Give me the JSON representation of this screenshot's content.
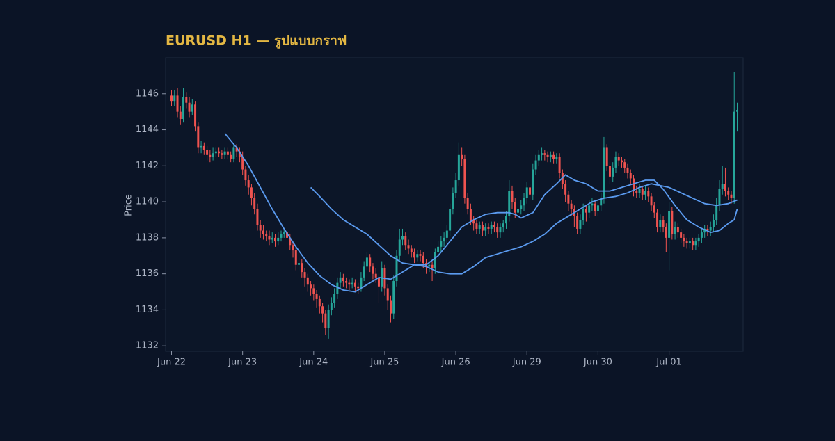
{
  "chart_data": {
    "type": "candlestick",
    "title": "EURUSD H1 — รูปแบบกราฟ",
    "y_label": "Price",
    "up_color": "#26a69a",
    "down_color": "#ef5350",
    "xlim": [
      -2,
      193
    ],
    "ylim": [
      1131.7,
      1148
    ],
    "xticks": [
      {
        "value": 0,
        "label": "Jun 22"
      },
      {
        "value": 24,
        "label": "Jun 23"
      },
      {
        "value": 48,
        "label": "Jun 24"
      },
      {
        "value": 72,
        "label": "Jun 25"
      },
      {
        "value": 96,
        "label": "Jun 26"
      },
      {
        "value": 120,
        "label": "Jun 29"
      },
      {
        "value": 144,
        "label": "Jun 30"
      },
      {
        "value": 168,
        "label": "Jul 01"
      }
    ],
    "yticks": [
      1132,
      1134,
      1136,
      1138,
      1140,
      1142,
      1144,
      1146
    ],
    "open": [
      1145.9,
      1145.6,
      1145.9,
      1145.0,
      1144.6,
      1145.8,
      1145.5,
      1145.0,
      1145.4,
      1144.2,
      1143.0,
      1143.1,
      1142.9,
      1142.6,
      1142.5,
      1142.7,
      1142.8,
      1142.7,
      1142.6,
      1142.8,
      1142.6,
      1142.4,
      1143.0,
      1142.8,
      1142.5,
      1141.8,
      1141.2,
      1140.8,
      1140.2,
      1139.6,
      1138.7,
      1138.4,
      1138.2,
      1138.1,
      1137.9,
      1138.0,
      1137.8,
      1138.0,
      1138.2,
      1138.3,
      1138.0,
      1137.6,
      1137.3,
      1136.5,
      1136.6,
      1136.1,
      1135.8,
      1135.4,
      1135.2,
      1134.9,
      1134.6,
      1134.2,
      1133.8,
      1133.0,
      1134.0,
      1134.4,
      1134.9,
      1135.5,
      1135.8,
      1135.6,
      1135.5,
      1135.4,
      1135.5,
      1135.3,
      1135.2,
      1135.8,
      1136.4,
      1136.9,
      1136.4,
      1136.0,
      1135.8,
      1135.3,
      1136.3,
      1135.2,
      1134.5,
      1133.8,
      1135.6,
      1137.0,
      1137.9,
      1138.1,
      1137.6,
      1137.4,
      1137.2,
      1136.9,
      1137.1,
      1137.0,
      1136.6,
      1136.4,
      1136.5,
      1136.3,
      1137.2,
      1137.5,
      1137.8,
      1138.0,
      1138.4,
      1139.6,
      1140.5,
      1141.2,
      1142.6,
      1142.4,
      1140.2,
      1139.6,
      1139.0,
      1138.8,
      1138.5,
      1138.7,
      1138.4,
      1138.6,
      1138.5,
      1138.7,
      1138.6,
      1138.3,
      1138.6,
      1138.8,
      1139.2,
      1140.6,
      1140.0,
      1139.4,
      1139.6,
      1139.8,
      1140.2,
      1140.8,
      1140.4,
      1141.8,
      1142.3,
      1142.6,
      1142.7,
      1142.6,
      1142.5,
      1142.6,
      1142.4,
      1142.5,
      1141.6,
      1141.0,
      1140.4,
      1139.9,
      1139.6,
      1139.2,
      1138.5,
      1139.0,
      1139.6,
      1139.4,
      1139.8,
      1139.9,
      1139.5,
      1139.8,
      1140.2,
      1143.0,
      1142.0,
      1141.4,
      1141.9,
      1142.5,
      1142.3,
      1142.2,
      1141.9,
      1141.6,
      1141.3,
      1140.6,
      1140.5,
      1140.7,
      1140.4,
      1140.6,
      1140.3,
      1139.8,
      1139.4,
      1138.6,
      1139.0,
      1138.6,
      1138.0,
      1139.5,
      1138.2,
      1138.6,
      1138.3,
      1138.0,
      1137.8,
      1137.7,
      1137.8,
      1137.6,
      1137.8,
      1138.0,
      1138.3,
      1138.5,
      1138.4,
      1138.6,
      1139.0,
      1139.8,
      1140.7,
      1141.0,
      1140.6,
      1140.4,
      1140.2,
      1145.0
    ],
    "high": [
      1146.2,
      1146.2,
      1146.3,
      1145.3,
      1146.3,
      1146.1,
      1145.8,
      1145.7,
      1145.6,
      1144.4,
      1143.4,
      1143.3,
      1143.1,
      1142.9,
      1143.0,
      1143.0,
      1143.0,
      1142.9,
      1143.0,
      1143.0,
      1142.8,
      1143.2,
      1143.2,
      1143.0,
      1142.8,
      1142.0,
      1141.5,
      1141.0,
      1140.5,
      1139.9,
      1139.0,
      1138.7,
      1138.4,
      1138.4,
      1138.3,
      1138.2,
      1138.3,
      1138.4,
      1138.5,
      1138.5,
      1138.2,
      1137.8,
      1137.5,
      1136.9,
      1136.8,
      1136.3,
      1136.0,
      1135.6,
      1135.4,
      1135.1,
      1134.8,
      1134.4,
      1134.0,
      1134.3,
      1134.7,
      1135.2,
      1135.8,
      1136.1,
      1136.0,
      1135.8,
      1135.7,
      1135.8,
      1135.7,
      1135.5,
      1136.1,
      1136.7,
      1137.2,
      1137.1,
      1136.6,
      1136.3,
      1136.0,
      1136.7,
      1136.5,
      1135.4,
      1134.8,
      1135.9,
      1137.3,
      1138.5,
      1138.5,
      1138.3,
      1137.9,
      1137.6,
      1137.4,
      1137.3,
      1137.3,
      1137.2,
      1136.8,
      1136.7,
      1136.7,
      1137.4,
      1137.8,
      1138.1,
      1138.3,
      1138.7,
      1139.9,
      1140.8,
      1141.6,
      1143.3,
      1143.0,
      1142.6,
      1140.5,
      1139.9,
      1139.2,
      1139.0,
      1138.9,
      1138.9,
      1138.8,
      1138.8,
      1138.9,
      1138.9,
      1138.8,
      1138.8,
      1139.0,
      1139.5,
      1141.2,
      1140.9,
      1140.2,
      1139.9,
      1140.1,
      1140.5,
      1141.1,
      1141.0,
      1142.1,
      1142.6,
      1142.9,
      1143.0,
      1142.9,
      1142.8,
      1142.8,
      1142.8,
      1142.7,
      1142.7,
      1141.8,
      1141.2,
      1140.6,
      1140.1,
      1139.8,
      1139.4,
      1139.3,
      1139.9,
      1139.8,
      1140.1,
      1140.2,
      1140.1,
      1140.1,
      1140.5,
      1143.6,
      1143.2,
      1142.2,
      1142.2,
      1142.8,
      1142.7,
      1142.5,
      1142.4,
      1142.1,
      1141.8,
      1141.5,
      1140.9,
      1141.0,
      1140.9,
      1140.9,
      1140.8,
      1140.5,
      1140.0,
      1139.6,
      1139.3,
      1139.2,
      1138.8,
      1140.0,
      1139.7,
      1138.9,
      1138.8,
      1138.5,
      1138.2,
      1138.0,
      1138.0,
      1138.0,
      1138.0,
      1138.2,
      1138.5,
      1138.7,
      1138.7,
      1138.9,
      1139.3,
      1140.2,
      1141.2,
      1142.0,
      1141.9,
      1140.8,
      1140.6,
      1147.2,
      1145.5
    ],
    "low": [
      1145.3,
      1145.3,
      1144.7,
      1144.3,
      1144.4,
      1145.2,
      1144.7,
      1144.8,
      1143.9,
      1142.7,
      1142.7,
      1142.6,
      1142.3,
      1142.2,
      1142.3,
      1142.5,
      1142.5,
      1142.4,
      1142.4,
      1142.4,
      1142.2,
      1142.2,
      1142.5,
      1142.2,
      1141.5,
      1140.9,
      1140.4,
      1139.8,
      1139.3,
      1138.4,
      1138.0,
      1137.9,
      1137.8,
      1137.6,
      1137.7,
      1137.5,
      1137.6,
      1137.8,
      1138.0,
      1137.8,
      1137.3,
      1136.9,
      1136.2,
      1136.2,
      1135.8,
      1135.3,
      1135.0,
      1134.8,
      1134.5,
      1134.1,
      1133.8,
      1133.3,
      1132.6,
      1132.4,
      1133.7,
      1134.1,
      1134.6,
      1135.2,
      1135.3,
      1135.2,
      1135.1,
      1135.2,
      1135.0,
      1134.9,
      1135.0,
      1135.6,
      1136.2,
      1136.1,
      1135.7,
      1135.5,
      1134.4,
      1135.0,
      1134.8,
      1134.0,
      1133.3,
      1133.5,
      1135.3,
      1136.7,
      1137.6,
      1137.3,
      1137.1,
      1136.9,
      1136.6,
      1136.7,
      1136.7,
      1136.3,
      1136.0,
      1136.1,
      1135.6,
      1136.0,
      1136.9,
      1137.2,
      1137.5,
      1137.7,
      1138.1,
      1139.3,
      1140.2,
      1140.9,
      1142.0,
      1139.9,
      1139.3,
      1138.7,
      1138.4,
      1138.2,
      1138.2,
      1138.1,
      1138.1,
      1138.2,
      1138.2,
      1138.3,
      1138.0,
      1138.0,
      1138.3,
      1138.5,
      1138.9,
      1139.6,
      1139.1,
      1139.1,
      1139.3,
      1139.5,
      1139.9,
      1140.1,
      1140.1,
      1141.5,
      1142.0,
      1142.3,
      1142.3,
      1142.2,
      1142.2,
      1142.1,
      1142.1,
      1141.3,
      1140.7,
      1140.0,
      1139.5,
      1139.2,
      1138.6,
      1138.2,
      1138.2,
      1138.7,
      1138.9,
      1139.1,
      1139.5,
      1139.2,
      1139.2,
      1139.5,
      1139.9,
      1141.7,
      1141.0,
      1141.1,
      1141.6,
      1142.0,
      1141.9,
      1141.6,
      1141.3,
      1141.0,
      1140.3,
      1140.2,
      1140.2,
      1140.1,
      1140.1,
      1140.0,
      1139.5,
      1139.1,
      1138.3,
      1138.3,
      1138.3,
      1137.2,
      1136.2,
      1137.9,
      1137.9,
      1138.0,
      1137.7,
      1137.5,
      1137.4,
      1137.4,
      1137.3,
      1137.3,
      1137.5,
      1137.7,
      1138.0,
      1138.1,
      1138.1,
      1138.3,
      1138.7,
      1139.5,
      1140.4,
      1140.3,
      1140.1,
      1139.9,
      1139.9,
      1143.9
    ],
    "close": [
      1145.6,
      1145.9,
      1145.0,
      1144.6,
      1145.8,
      1145.5,
      1145.0,
      1145.4,
      1144.2,
      1143.0,
      1143.1,
      1142.9,
      1142.6,
      1142.5,
      1142.7,
      1142.8,
      1142.7,
      1142.6,
      1142.8,
      1142.6,
      1142.4,
      1143.0,
      1142.8,
      1142.5,
      1141.8,
      1141.2,
      1140.8,
      1140.2,
      1139.6,
      1138.7,
      1138.4,
      1138.2,
      1138.1,
      1137.9,
      1138.0,
      1137.8,
      1138.0,
      1138.2,
      1138.3,
      1138.0,
      1137.6,
      1137.3,
      1136.5,
      1136.6,
      1136.1,
      1135.8,
      1135.4,
      1135.2,
      1134.9,
      1134.6,
      1134.2,
      1133.8,
      1133.0,
      1134.0,
      1134.4,
      1134.9,
      1135.5,
      1135.8,
      1135.6,
      1135.5,
      1135.4,
      1135.5,
      1135.3,
      1135.2,
      1135.8,
      1136.4,
      1136.9,
      1136.4,
      1136.0,
      1135.8,
      1135.3,
      1136.3,
      1135.2,
      1134.5,
      1133.8,
      1135.6,
      1137.0,
      1137.9,
      1138.1,
      1137.6,
      1137.4,
      1137.2,
      1136.9,
      1137.1,
      1137.0,
      1136.6,
      1136.4,
      1136.5,
      1136.3,
      1137.2,
      1137.5,
      1137.8,
      1138.0,
      1138.4,
      1139.6,
      1140.5,
      1141.2,
      1142.6,
      1142.4,
      1140.2,
      1139.6,
      1139.0,
      1138.8,
      1138.5,
      1138.7,
      1138.4,
      1138.6,
      1138.5,
      1138.7,
      1138.6,
      1138.3,
      1138.6,
      1138.8,
      1139.2,
      1140.6,
      1140.0,
      1139.4,
      1139.6,
      1139.8,
      1140.2,
      1140.8,
      1140.4,
      1141.8,
      1142.3,
      1142.6,
      1142.7,
      1142.6,
      1142.5,
      1142.6,
      1142.4,
      1142.5,
      1141.6,
      1141.0,
      1140.4,
      1139.9,
      1139.6,
      1139.2,
      1138.5,
      1139.0,
      1139.6,
      1139.4,
      1139.8,
      1139.9,
      1139.5,
      1139.8,
      1140.2,
      1143.0,
      1142.0,
      1141.4,
      1141.9,
      1142.5,
      1142.3,
      1142.2,
      1141.9,
      1141.6,
      1141.3,
      1140.6,
      1140.5,
      1140.7,
      1140.4,
      1140.6,
      1140.3,
      1139.8,
      1139.4,
      1138.6,
      1139.0,
      1138.6,
      1138.0,
      1139.5,
      1138.2,
      1138.6,
      1138.3,
      1138.0,
      1137.8,
      1137.7,
      1137.8,
      1137.6,
      1137.8,
      1138.0,
      1138.3,
      1138.5,
      1138.4,
      1138.6,
      1139.0,
      1139.8,
      1140.7,
      1141.0,
      1140.6,
      1140.4,
      1140.2,
      1145.0,
      1145.1
    ],
    "lines": [
      {
        "color": "#5b9bf0",
        "x": [
          18,
          22,
          26,
          30,
          34,
          38,
          42,
          46,
          50,
          54,
          58,
          62,
          66,
          70,
          74,
          78,
          82,
          86,
          90,
          94,
          98,
          102,
          106,
          110,
          114,
          116,
          118,
          122,
          126,
          130,
          133,
          136,
          140,
          144,
          148,
          152,
          156,
          160,
          163,
          166,
          170,
          174,
          178,
          182,
          185,
          188,
          190,
          191
        ],
        "values": [
          1143.8,
          1143.0,
          1142.0,
          1140.8,
          1139.6,
          1138.5,
          1137.5,
          1136.6,
          1135.9,
          1135.4,
          1135.1,
          1135.0,
          1135.4,
          1135.8,
          1135.7,
          1136.1,
          1136.5,
          1136.5,
          1137.0,
          1137.8,
          1138.6,
          1139.0,
          1139.3,
          1139.4,
          1139.4,
          1139.3,
          1139.1,
          1139.4,
          1140.4,
          1141.0,
          1141.5,
          1141.2,
          1141.0,
          1140.6,
          1140.6,
          1140.8,
          1141.0,
          1141.2,
          1141.2,
          1140.7,
          1139.8,
          1139.0,
          1138.6,
          1138.3,
          1138.4,
          1138.8,
          1139.0,
          1139.6
        ]
      },
      {
        "color": "#5b9bf0",
        "x": [
          47,
          50,
          54,
          58,
          62,
          66,
          70,
          74,
          78,
          82,
          86,
          90,
          94,
          98,
          102,
          106,
          110,
          114,
          118,
          122,
          126,
          130,
          134,
          138,
          142,
          146,
          150,
          154,
          158,
          162,
          165,
          168,
          172,
          176,
          180,
          184,
          188,
          191
        ],
        "values": [
          1140.8,
          1140.3,
          1139.6,
          1139.0,
          1138.6,
          1138.2,
          1137.6,
          1137.0,
          1136.6,
          1136.5,
          1136.4,
          1136.1,
          1136.0,
          1136.0,
          1136.4,
          1136.9,
          1137.1,
          1137.3,
          1137.5,
          1137.8,
          1138.2,
          1138.8,
          1139.2,
          1139.6,
          1140.0,
          1140.2,
          1140.3,
          1140.5,
          1140.8,
          1141.0,
          1140.9,
          1140.8,
          1140.5,
          1140.2,
          1139.9,
          1139.8,
          1139.9,
          1140.1
        ]
      }
    ]
  }
}
